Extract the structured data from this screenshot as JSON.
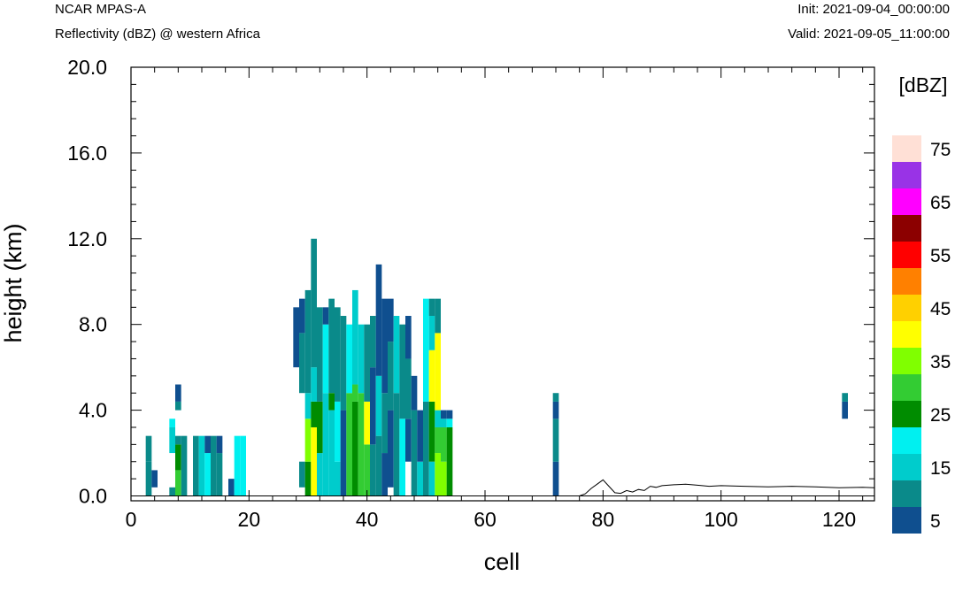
{
  "header": {
    "model": "NCAR MPAS-A",
    "field": "Reflectivity (dBZ) @ western Africa",
    "init": "Init: 2021-09-04_00:00:00",
    "valid": "Valid: 2021-09-05_11:00:00"
  },
  "chart_data": {
    "type": "heatmap",
    "title": "Reflectivity (dBZ) @ western Africa",
    "xlabel": "cell",
    "ylabel": "height (km)",
    "xlim": [
      0,
      126
    ],
    "ylim": [
      0,
      20
    ],
    "xticks": [
      "0",
      "20",
      "40",
      "60",
      "80",
      "100",
      "120"
    ],
    "yticks": [
      "0.0",
      "4.0",
      "8.0",
      "12.0",
      "16.0",
      "20.0"
    ],
    "colorbar": {
      "title": "[dBZ]",
      "labels": [
        "5",
        "15",
        "25",
        "35",
        "45",
        "55",
        "65",
        "75"
      ],
      "levels": [
        5,
        10,
        15,
        20,
        25,
        30,
        35,
        40,
        45,
        50,
        55,
        60,
        65,
        70,
        75
      ],
      "colors": [
        "#0f4f8f",
        "#0a8a8a",
        "#00cccc",
        "#00f0f0",
        "#008c00",
        "#33cc33",
        "#80ff00",
        "#ffff00",
        "#ffd000",
        "#ff8000",
        "#ff0000",
        "#8c0000",
        "#ff00ff",
        "#9933e6",
        "#ffe0d6"
      ]
    },
    "cell_height_km": 0.4,
    "columns": [
      {
        "x": 3,
        "cells": [
          [
            0.0,
            1.6,
            10
          ],
          [
            1.6,
            2.8,
            10
          ]
        ]
      },
      {
        "x": 4,
        "cells": [
          [
            0.4,
            1.2,
            5
          ]
        ]
      },
      {
        "x": 7,
        "cells": [
          [
            0.0,
            0.4,
            10
          ],
          [
            2.0,
            3.2,
            15
          ],
          [
            3.2,
            3.6,
            20
          ]
        ]
      },
      {
        "x": 8,
        "cells": [
          [
            0.0,
            1.2,
            30
          ],
          [
            1.2,
            2.4,
            25
          ],
          [
            2.4,
            2.8,
            10
          ],
          [
            4.0,
            4.4,
            10
          ],
          [
            4.4,
            5.2,
            5
          ]
        ]
      },
      {
        "x": 9,
        "cells": [
          [
            0.0,
            2.8,
            10
          ]
        ]
      },
      {
        "x": 11,
        "cells": [
          [
            0.0,
            2.8,
            10
          ]
        ]
      },
      {
        "x": 12,
        "cells": [
          [
            0.0,
            2.8,
            15
          ]
        ]
      },
      {
        "x": 13,
        "cells": [
          [
            0.0,
            2.0,
            20
          ],
          [
            2.0,
            2.8,
            5
          ]
        ]
      },
      {
        "x": 14,
        "cells": [
          [
            0.0,
            2.8,
            10
          ]
        ]
      },
      {
        "x": 15,
        "cells": [
          [
            0.0,
            2.0,
            10
          ],
          [
            2.0,
            2.8,
            5
          ]
        ]
      },
      {
        "x": 17,
        "cells": [
          [
            0.0,
            0.8,
            5
          ]
        ]
      },
      {
        "x": 18,
        "cells": [
          [
            0.0,
            2.8,
            20
          ]
        ]
      },
      {
        "x": 19,
        "cells": [
          [
            0.0,
            2.8,
            20
          ]
        ]
      },
      {
        "x": 28,
        "cells": [
          [
            6.0,
            8.8,
            5
          ]
        ]
      },
      {
        "x": 29,
        "cells": [
          [
            0.4,
            1.6,
            10
          ],
          [
            4.8,
            7.6,
            10
          ],
          [
            7.6,
            9.2,
            5
          ]
        ]
      },
      {
        "x": 30,
        "cells": [
          [
            0.0,
            1.6,
            25
          ],
          [
            1.6,
            3.6,
            35
          ],
          [
            3.6,
            4.8,
            15
          ],
          [
            4.8,
            9.6,
            10
          ]
        ]
      },
      {
        "x": 31,
        "cells": [
          [
            0.0,
            3.2,
            40
          ],
          [
            3.2,
            4.4,
            25
          ],
          [
            4.4,
            6.0,
            15
          ],
          [
            6.0,
            12.0,
            10
          ]
        ]
      },
      {
        "x": 32,
        "cells": [
          [
            0.0,
            2.0,
            15
          ],
          [
            2.0,
            4.4,
            25
          ],
          [
            4.4,
            8.8,
            10
          ]
        ]
      },
      {
        "x": 33,
        "cells": [
          [
            0.0,
            4.8,
            15
          ],
          [
            4.8,
            8.0,
            20
          ],
          [
            8.0,
            8.8,
            5
          ]
        ]
      },
      {
        "x": 34,
        "cells": [
          [
            0.0,
            4.0,
            15
          ],
          [
            4.0,
            4.8,
            25
          ],
          [
            4.8,
            9.2,
            10
          ]
        ]
      },
      {
        "x": 35,
        "cells": [
          [
            0.0,
            1.6,
            15
          ],
          [
            1.6,
            4.4,
            20
          ],
          [
            4.4,
            8.8,
            10
          ]
        ]
      },
      {
        "x": 36,
        "cells": [
          [
            0.0,
            4.0,
            5
          ],
          [
            4.0,
            8.4,
            10
          ]
        ]
      },
      {
        "x": 37,
        "cells": [
          [
            0.0,
            4.8,
            30
          ],
          [
            4.8,
            8.0,
            20
          ]
        ]
      },
      {
        "x": 38,
        "cells": [
          [
            0.0,
            4.4,
            25
          ],
          [
            4.4,
            5.2,
            30
          ],
          [
            5.2,
            9.6,
            15
          ]
        ]
      },
      {
        "x": 39,
        "cells": [
          [
            0.0,
            4.8,
            30
          ],
          [
            4.8,
            8.0,
            15
          ]
        ]
      },
      {
        "x": 40,
        "cells": [
          [
            0.0,
            2.4,
            30
          ],
          [
            2.4,
            4.4,
            40
          ],
          [
            4.4,
            8.0,
            10
          ]
        ]
      },
      {
        "x": 41,
        "cells": [
          [
            0.0,
            2.4,
            10
          ],
          [
            2.4,
            6.0,
            5
          ],
          [
            6.0,
            8.4,
            10
          ]
        ]
      },
      {
        "x": 42,
        "cells": [
          [
            0.0,
            2.8,
            10
          ],
          [
            2.8,
            5.6,
            15
          ],
          [
            5.6,
            10.8,
            5
          ]
        ]
      },
      {
        "x": 43,
        "cells": [
          [
            0.0,
            2.0,
            5
          ],
          [
            2.0,
            4.8,
            10
          ],
          [
            4.8,
            9.2,
            5
          ]
        ]
      },
      {
        "x": 44,
        "cells": [
          [
            0.4,
            4.0,
            5
          ],
          [
            4.0,
            7.2,
            10
          ],
          [
            7.2,
            9.2,
            5
          ]
        ]
      },
      {
        "x": 45,
        "cells": [
          [
            0.0,
            4.8,
            10
          ],
          [
            4.8,
            8.4,
            15
          ]
        ]
      },
      {
        "x": 46,
        "cells": [
          [
            0.0,
            3.6,
            20
          ],
          [
            3.6,
            8.0,
            10
          ]
        ]
      },
      {
        "x": 47,
        "cells": [
          [
            1.6,
            3.6,
            5
          ],
          [
            3.6,
            6.4,
            10
          ],
          [
            6.4,
            8.4,
            5
          ]
        ]
      },
      {
        "x": 48,
        "cells": [
          [
            0.0,
            4.0,
            10
          ],
          [
            4.0,
            5.6,
            5
          ]
        ]
      },
      {
        "x": 49,
        "cells": [
          [
            0.0,
            1.6,
            15
          ],
          [
            1.6,
            4.0,
            5
          ]
        ]
      },
      {
        "x": 50,
        "cells": [
          [
            0.0,
            4.4,
            10
          ],
          [
            4.4,
            9.2,
            20
          ]
        ]
      },
      {
        "x": 51,
        "cells": [
          [
            0.0,
            1.6,
            15
          ],
          [
            1.6,
            4.4,
            25
          ],
          [
            4.4,
            6.8,
            40
          ],
          [
            6.8,
            8.4,
            15
          ],
          [
            8.4,
            9.2,
            10
          ]
        ]
      },
      {
        "x": 52,
        "cells": [
          [
            0.0,
            2.0,
            35
          ],
          [
            2.0,
            3.2,
            30
          ],
          [
            3.2,
            4.0,
            15
          ],
          [
            4.0,
            7.6,
            40
          ],
          [
            7.6,
            9.2,
            10
          ]
        ]
      },
      {
        "x": 53,
        "cells": [
          [
            0.0,
            1.6,
            35
          ],
          [
            1.6,
            3.2,
            30
          ],
          [
            3.2,
            3.6,
            15
          ],
          [
            3.6,
            4.0,
            5
          ]
        ]
      },
      {
        "x": 54,
        "cells": [
          [
            0.0,
            3.2,
            25
          ],
          [
            3.2,
            3.6,
            20
          ],
          [
            3.6,
            4.0,
            5
          ]
        ]
      },
      {
        "x": 72,
        "cells": [
          [
            0.0,
            1.6,
            5
          ],
          [
            1.6,
            3.6,
            10
          ],
          [
            3.6,
            4.4,
            5
          ],
          [
            4.4,
            4.8,
            10
          ]
        ]
      },
      {
        "x": 121,
        "cells": [
          [
            3.6,
            4.4,
            5
          ],
          [
            4.4,
            4.8,
            10
          ]
        ]
      }
    ],
    "terrain": {
      "x": [
        0,
        76,
        77,
        78,
        79,
        80,
        81,
        82,
        83,
        84,
        85,
        86,
        87,
        88,
        89,
        90,
        92,
        94,
        96,
        98,
        100,
        104,
        108,
        112,
        116,
        120,
        124,
        126
      ],
      "y": [
        0.0,
        0.0,
        0.1,
        0.35,
        0.55,
        0.75,
        0.45,
        0.15,
        0.12,
        0.25,
        0.18,
        0.3,
        0.25,
        0.45,
        0.4,
        0.48,
        0.52,
        0.55,
        0.5,
        0.45,
        0.48,
        0.45,
        0.42,
        0.45,
        0.42,
        0.38,
        0.4,
        0.38
      ]
    }
  }
}
